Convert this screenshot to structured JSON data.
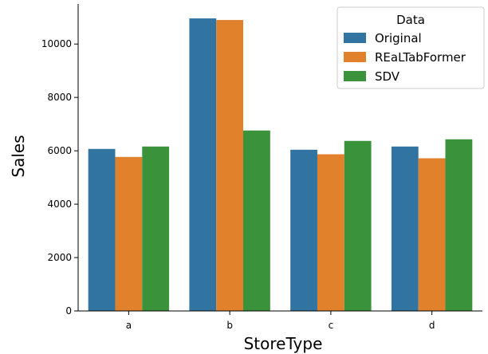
{
  "chart_data": {
    "type": "bar",
    "title": "",
    "xlabel": "StoreType",
    "ylabel": "Sales",
    "categories": [
      "a",
      "b",
      "c",
      "d"
    ],
    "ylim": [
      0,
      11500
    ],
    "yticks": [
      0,
      2000,
      4000,
      6000,
      8000,
      10000
    ],
    "grid": false,
    "legend": {
      "title": "Data",
      "placement": "top-right"
    },
    "series": [
      {
        "name": "Original",
        "color": "#3274a1",
        "values": [
          6070,
          10960,
          6040,
          6160
        ]
      },
      {
        "name": "REaLTabFormer",
        "color": "#e1812c",
        "values": [
          5770,
          10900,
          5870,
          5720
        ]
      },
      {
        "name": "SDV",
        "color": "#3a923a",
        "values": [
          6160,
          6760,
          6370,
          6430
        ]
      }
    ]
  }
}
